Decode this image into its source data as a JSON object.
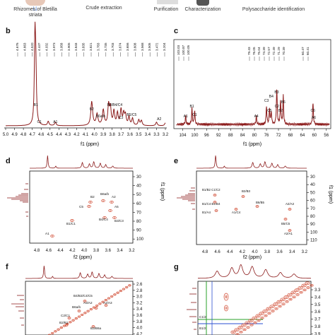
{
  "top_strip": {
    "steps": [
      "Rhizomes of Bletilla striata",
      "Crude extraction",
      "Purification",
      "Characterization",
      "Polysaccharide identification"
    ]
  },
  "panels": {
    "b": {
      "letter": "b",
      "axis_label": "f1 (ppm)",
      "ticks": [
        "5.0",
        "4.9",
        "4.8",
        "4.7",
        "4.6",
        "4.5",
        "4.4",
        "4.3",
        "4.2",
        "4.1",
        "4.0",
        "3.9",
        "3.8",
        "3.7",
        "3.6",
        "3.5",
        "3.4",
        "3.3",
        "3.2"
      ],
      "peak_list": [
        "4.676",
        "4.663",
        "4.520",
        "4.44?",
        "4.032",
        "3.973",
        "3.958",
        "3.905",
        "3.843",
        "3.835",
        "3.821",
        "3.783",
        "3.735",
        "3.703",
        "3.674",
        "3.656",
        "3.608",
        "3.568",
        "3.505",
        "3.472",
        "3.204"
      ],
      "peak_labels": [
        "B1",
        "C1",
        "A1",
        "B2",
        "B6a/b",
        "B3/B4/C4",
        "C3",
        "B5/C5",
        "A2"
      ]
    },
    "c": {
      "letter": "c",
      "axis_label": "f1 (ppm)",
      "ticks": [
        "104",
        "100",
        "96",
        "92",
        "88",
        "84",
        "80",
        "76",
        "72",
        "68",
        "64",
        "60",
        "56"
      ],
      "peak_list": [
        "103.03",
        "100.87",
        "100.05",
        "79.43",
        "76.05",
        "75.04",
        "74.39",
        "72.57",
        "72.49",
        "71.29",
        "70.39",
        "60.47",
        "60.41"
      ],
      "peak_labels": [
        "A1",
        "B1",
        "C1",
        "A4",
        "C3",
        "C5",
        "B4",
        "B3",
        "C2",
        "B2",
        "B6",
        "C6",
        "A6"
      ]
    },
    "d": {
      "letter": "d",
      "x_axis_label": "f2 (ppm)",
      "y_axis_label": "f1 (ppm)",
      "x_ticks": [
        "4.8",
        "4.6",
        "4.4",
        "4.2",
        "4.0",
        "3.8",
        "3.6",
        "3.4",
        "3.2"
      ],
      "y_ticks": [
        "30",
        "40",
        "50",
        "60",
        "70",
        "80",
        "90",
        "100"
      ],
      "cross_labels": [
        "B6a/b",
        "C5",
        "A5",
        "B4/C4",
        "B3/C3",
        "B1/C1",
        "A1",
        "B2",
        "A2"
      ]
    },
    "e": {
      "letter": "e",
      "x_axis_label": "f2 (ppm)",
      "y_axis_label": "f1 (ppm)",
      "x_ticks": [
        "4.8",
        "4.6",
        "4.4",
        "4.2",
        "4.0",
        "3.8",
        "3.6",
        "3.4",
        "3.2"
      ],
      "y_ticks": [
        "30",
        "40",
        "50",
        "60",
        "70",
        "80",
        "90",
        "100",
        "110"
      ],
      "cross_labels": [
        "B1/B2 C1/C2",
        "B1/C4 B1/B4",
        "B1/A4",
        "B2/B3",
        "A1/C4",
        "B6/B5",
        "A2/A3",
        "B5/C5",
        "A2/A1"
      ]
    },
    "f": {
      "letter": "f",
      "x_axis_label": "",
      "y_ticks": [
        "2.6",
        "2.8",
        "3.0",
        "3.2",
        "3.4",
        "3.6",
        "3.8",
        "4.0",
        "4.2"
      ],
      "cross_labels": [
        "B4/B3/C4/C5",
        "B6a/b",
        "A3/A2",
        "A2/A3",
        "C2/C1",
        "B2/B1",
        "B3/B6a"
      ]
    },
    "g": {
      "letter": "g",
      "y_ticks": [
        "3.3",
        "3.4",
        "3.5",
        "3.6",
        "3.7",
        "3.8",
        "3.9"
      ],
      "cross_labels": [
        "B1/2",
        "C1/2"
      ]
    }
  },
  "colors": {
    "spectrum": "#8b1a1a",
    "contour": "#d0482f",
    "green_line": "#2aa02a",
    "blue_line": "#2a4fd0"
  }
}
